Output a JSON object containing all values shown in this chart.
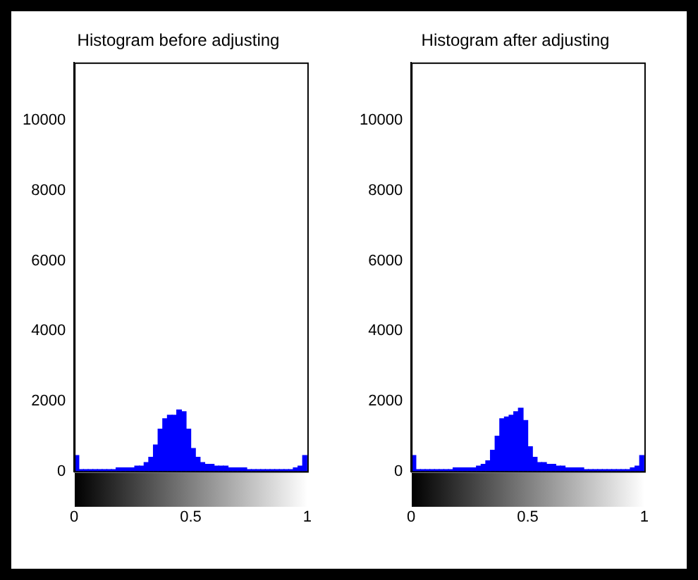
{
  "chart_data": [
    {
      "type": "histogram",
      "title": "Histogram before adjusting",
      "color": "#0000ff",
      "bins": [
        0,
        0.02,
        0.04,
        0.06,
        0.08,
        0.1,
        0.12,
        0.14,
        0.16,
        0.18,
        0.2,
        0.22,
        0.24,
        0.26,
        0.28,
        0.3,
        0.32,
        0.34,
        0.36,
        0.38,
        0.4,
        0.42,
        0.44,
        0.46,
        0.48,
        0.5,
        0.52,
        0.54,
        0.56,
        0.58,
        0.6,
        0.62,
        0.64,
        0.66,
        0.68,
        0.7,
        0.72,
        0.74,
        0.76,
        0.78,
        0.8,
        0.82,
        0.84,
        0.86,
        0.88,
        0.9,
        0.92,
        0.94,
        0.96,
        0.98,
        1
      ],
      "values": [
        450,
        50,
        50,
        50,
        50,
        50,
        50,
        50,
        50,
        100,
        100,
        100,
        100,
        150,
        150,
        250,
        400,
        750,
        1200,
        1500,
        1600,
        1600,
        1750,
        1700,
        1200,
        650,
        400,
        250,
        200,
        200,
        150,
        150,
        150,
        100,
        100,
        100,
        100,
        50,
        50,
        50,
        50,
        50,
        50,
        50,
        50,
        50,
        50,
        100,
        150,
        450
      ],
      "xlim": [
        0,
        1
      ],
      "xticks": [
        0,
        0.5,
        1
      ],
      "ylim": [
        0,
        11650
      ],
      "yticks": [
        0,
        2000,
        4000,
        6000,
        8000,
        10000
      ],
      "grid": false,
      "legend": false
    },
    {
      "type": "histogram",
      "title": "Histogram after adjusting",
      "color": "#0000ff",
      "bins": [
        0,
        0.02,
        0.04,
        0.06,
        0.08,
        0.1,
        0.12,
        0.14,
        0.16,
        0.18,
        0.2,
        0.22,
        0.24,
        0.26,
        0.28,
        0.3,
        0.32,
        0.34,
        0.36,
        0.38,
        0.4,
        0.42,
        0.44,
        0.46,
        0.48,
        0.5,
        0.52,
        0.54,
        0.56,
        0.58,
        0.6,
        0.62,
        0.64,
        0.66,
        0.68,
        0.7,
        0.72,
        0.74,
        0.76,
        0.78,
        0.8,
        0.82,
        0.84,
        0.86,
        0.88,
        0.9,
        0.92,
        0.94,
        0.96,
        0.98,
        1
      ],
      "values": [
        450,
        50,
        50,
        50,
        50,
        50,
        50,
        50,
        50,
        100,
        100,
        100,
        100,
        100,
        150,
        200,
        300,
        600,
        1000,
        1500,
        1550,
        1600,
        1700,
        1800,
        1450,
        700,
        400,
        250,
        250,
        200,
        200,
        150,
        150,
        100,
        100,
        100,
        100,
        50,
        50,
        50,
        50,
        50,
        50,
        50,
        50,
        50,
        50,
        100,
        150,
        450
      ],
      "xlim": [
        0,
        1
      ],
      "xticks": [
        0,
        0.5,
        1
      ],
      "ylim": [
        0,
        11650
      ],
      "yticks": [
        0,
        2000,
        4000,
        6000,
        8000,
        10000
      ],
      "grid": false,
      "legend": false
    }
  ]
}
